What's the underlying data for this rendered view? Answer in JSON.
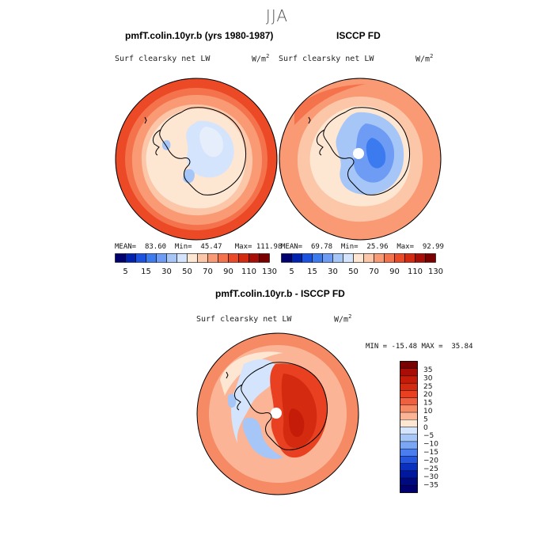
{
  "season": "JJA",
  "panel_left": {
    "title": "pmfT.colin.10yr.b (yrs 1980-1987)",
    "variable": "Surf clearsky net LW",
    "units_base": "W/m",
    "units_exp": "2",
    "stats": {
      "mean_label": "MEAN=",
      "mean": "83.60",
      "min_label": "Min=",
      "min": "45.47",
      "max_label": "Max=",
      "max": "111.98"
    }
  },
  "panel_right": {
    "title": "ISCCP FD",
    "variable": "Surf clearsky net LW",
    "units_base": "W/m",
    "units_exp": "2",
    "stats": {
      "mean_label": "MEAN=",
      "mean": "69.78",
      "min_label": "Min=",
      "min": "25.96",
      "max_label": "Max=",
      "max": "92.99"
    }
  },
  "panel_diff": {
    "title": "pmfT.colin.10yr.b - ISCCP FD",
    "variable": "Surf clearsky net LW",
    "units_base": "W/m",
    "units_exp": "2",
    "stats": {
      "min_label": "MIN =",
      "min": "-15.48",
      "max_label": "MAX =",
      "max": "35.84"
    }
  },
  "colorbar_abs": {
    "colors": [
      "#00006e",
      "#0022b0",
      "#1c52e0",
      "#3c7af0",
      "#6e9cf4",
      "#a6c6f8",
      "#d4e4fc",
      "#fde6d2",
      "#fcc6a8",
      "#fa9a74",
      "#f5734c",
      "#ec4a26",
      "#d42a10",
      "#a80e06",
      "#7a0000"
    ],
    "labels": [
      "5",
      "15",
      "30",
      "50",
      "70",
      "90",
      "110",
      "130"
    ]
  },
  "colorbar_diff": {
    "colors": [
      "#7a0000",
      "#a80e06",
      "#c41c08",
      "#d42a10",
      "#e84020",
      "#f06040",
      "#f58a64",
      "#fbb496",
      "#fde6d2",
      "#d4e4fc",
      "#a6c6f8",
      "#7aa6f4",
      "#4a7ef0",
      "#2456e0",
      "#0a30c0",
      "#0018a0",
      "#000a80",
      "#00006e"
    ],
    "labels": [
      "35",
      "30",
      "25",
      "20",
      "15",
      "10",
      "5",
      "0",
      "−5",
      "−10",
      "−15",
      "−20",
      "−25",
      "−30",
      "−35"
    ]
  }
}
